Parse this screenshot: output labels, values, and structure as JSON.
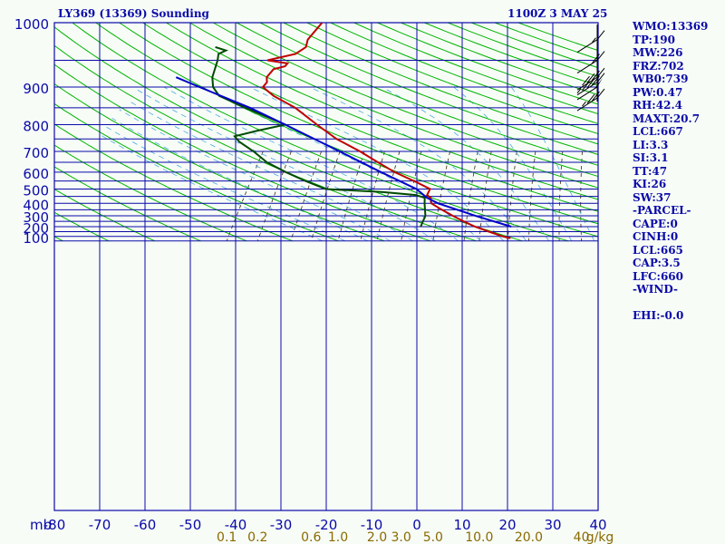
{
  "header": {
    "title": "LY369 (13369) Sounding",
    "datetime": "1100Z  3 MAY 25"
  },
  "stats": [
    "WMO:13369",
    "TP:190",
    "MW:226",
    "FRZ:702",
    "WB0:739",
    "PW:0.47",
    "RH:42.4",
    "MAXT:20.7",
    "LCL:667",
    "LI:3.3",
    "SI:3.1",
    "TT:47",
    "KI:26",
    "SW:37",
    "-PARCEL-",
    "CAPE:0",
    "CINH:0",
    "LCL:665",
    "CAP:3.5",
    "LFC:660",
    "-WIND-",
    "",
    "EHI:-0.0"
  ],
  "colors": {
    "background": "#f7fcf7",
    "grid": "#0a0aa8",
    "dry_adiabat": "#00b400",
    "moist_adiabat": "#4fa8e0",
    "mixing_ratio": "#3a2a10",
    "temperature": "#c00000",
    "dewpoint": "#004a00",
    "parcel": "#0000c8",
    "axis_text": "#0a0aa8",
    "mixing_text": "#8a6a00"
  },
  "chart_data": {
    "type": "line",
    "title": "LY369 (13369) Sounding",
    "y_axis_unit": "mb",
    "x_axis_unit": "°C",
    "mixing_ratio_unit": "g/kg",
    "ylim": [
      1050,
      100
    ],
    "xlim": [
      -80,
      0
    ],
    "y_scale": "log",
    "pressure_levels": [
      1000,
      900,
      800,
      700,
      600,
      500,
      400,
      300,
      200,
      100
    ],
    "pressure_lines": [
      100,
      150,
      200,
      250,
      300,
      350,
      400,
      450,
      500,
      550,
      600,
      650,
      700,
      750,
      800,
      850,
      900,
      950,
      1000,
      1050
    ],
    "pressure_tick_labels": [
      "100",
      "200",
      "300",
      "400",
      "500",
      "600",
      "700",
      "800",
      "900",
      "1000"
    ],
    "temperature_ticks": [
      -80,
      -70,
      -60,
      -50,
      -40,
      -30,
      -20,
      -10,
      0,
      10,
      20,
      30,
      40
    ],
    "temperature_tick_labels": [
      "-80",
      "-70",
      "-60",
      "-50",
      "-40",
      "-30",
      "-20",
      "-10",
      "0",
      "10",
      "20",
      "30",
      "40"
    ],
    "mixing_ratio_labels": [
      {
        "label": "0.1",
        "value": 0.1
      },
      {
        "label": "0.2",
        "value": 0.2
      },
      {
        "label": "0.6",
        "value": 0.6
      },
      {
        "label": "1.0",
        "value": 1.0
      },
      {
        "label": "2.0",
        "value": 2.0
      },
      {
        "label": "3.0",
        "value": 3.0
      },
      {
        "label": "5.0",
        "value": 5.0
      },
      {
        "label": "10.0",
        "value": 10.0
      },
      {
        "label": "20.0",
        "value": 20.0
      },
      {
        "label": "40",
        "value": 40
      },
      {
        "label": "g/kg",
        "value": null
      }
    ],
    "series": [
      {
        "key": "temperature",
        "points": [
          [
            1020,
            21
          ],
          [
            1000,
            19
          ],
          [
            950,
            15
          ],
          [
            900,
            11
          ],
          [
            850,
            7.5
          ],
          [
            800,
            4
          ],
          [
            750,
            0.5
          ],
          [
            700,
            -3
          ],
          [
            660,
            -4.2
          ],
          [
            640,
            -5.5
          ],
          [
            600,
            -6
          ],
          [
            560,
            -10
          ],
          [
            500,
            -17
          ],
          [
            450,
            -22.5
          ],
          [
            400,
            -28.5
          ],
          [
            350,
            -36
          ],
          [
            300,
            -43
          ],
          [
            250,
            -51
          ],
          [
            220,
            -58
          ],
          [
            200,
            -62
          ],
          [
            190,
            -62
          ],
          [
            180,
            -63
          ],
          [
            165,
            -63
          ],
          [
            160,
            -61
          ],
          [
            155,
            -61
          ],
          [
            150,
            -66
          ],
          [
            140,
            -61
          ],
          [
            130,
            -60
          ],
          [
            120,
            -61
          ],
          [
            110,
            -61
          ],
          [
            100,
            -61
          ]
        ]
      },
      {
        "key": "dewpoint",
        "points": [
          [
            900,
            -1
          ],
          [
            800,
            -2
          ],
          [
            700,
            -4.5
          ],
          [
            660,
            -5.5
          ],
          [
            640,
            -8
          ],
          [
            620,
            -16
          ],
          [
            600,
            -29
          ],
          [
            550,
            -35
          ],
          [
            500,
            -41
          ],
          [
            450,
            -47
          ],
          [
            400,
            -52
          ],
          [
            360,
            -57
          ],
          [
            340,
            -59
          ],
          [
            320,
            -55
          ],
          [
            300,
            -50
          ],
          [
            250,
            -62
          ],
          [
            220,
            -70
          ],
          [
            200,
            -73
          ],
          [
            180,
            -75
          ],
          [
            150,
            -77
          ],
          [
            140,
            -78
          ],
          [
            135,
            -77
          ],
          [
            130,
            -80
          ]
        ]
      },
      {
        "key": "parcel",
        "points": [
          [
            900,
            19
          ],
          [
            800,
            9
          ],
          [
            700,
            -1.5
          ],
          [
            660,
            -5
          ],
          [
            600,
            -9
          ],
          [
            500,
            -20
          ],
          [
            400,
            -33
          ],
          [
            300,
            -50
          ],
          [
            250,
            -61
          ],
          [
            200,
            -76
          ],
          [
            180,
            -83
          ]
        ]
      }
    ],
    "wind_barbs": [
      {
        "pressure": 120,
        "speed_kt": 15
      },
      {
        "pressure": 150,
        "speed_kt": 20
      },
      {
        "pressure": 180,
        "speed_kt": 40
      },
      {
        "pressure": 190,
        "speed_kt": 45
      },
      {
        "pressure": 200,
        "speed_kt": 50
      },
      {
        "pressure": 225,
        "speed_kt": 35
      }
    ]
  }
}
